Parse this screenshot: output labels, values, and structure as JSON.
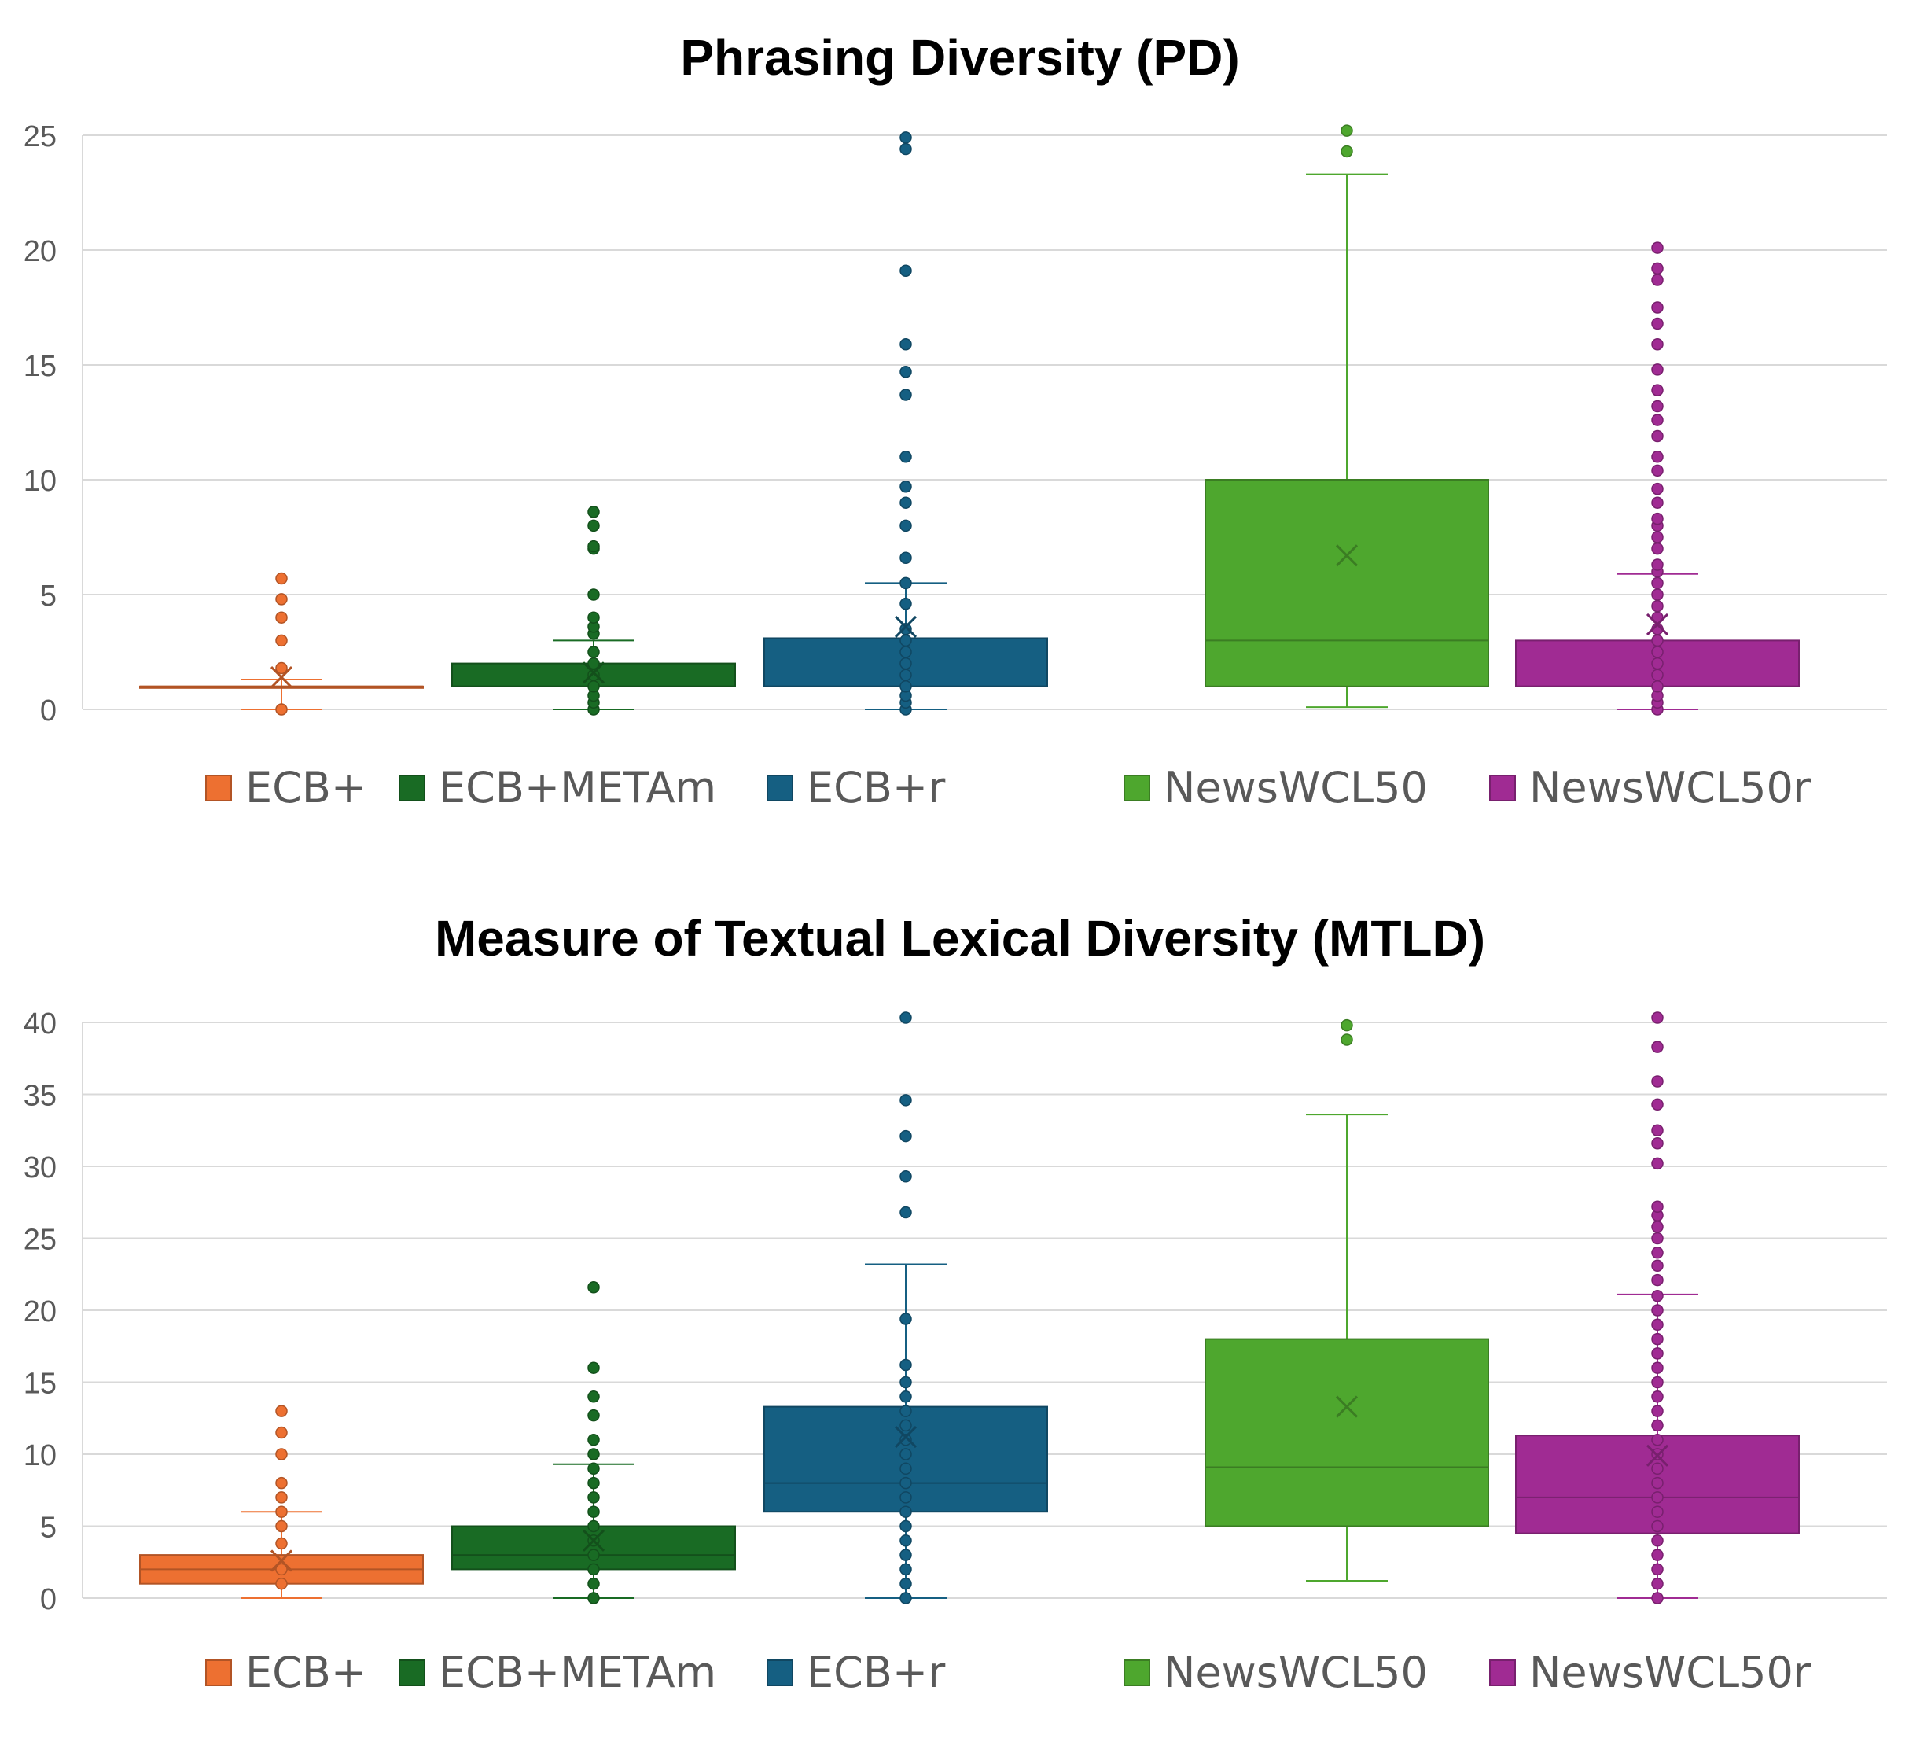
{
  "chart_data": [
    {
      "type": "box",
      "title": "Phrasing Diversity (PD)",
      "xlabel": "",
      "ylabel": "",
      "ylim": [
        0,
        25
      ],
      "yticks": [
        0,
        5,
        10,
        15,
        20,
        25
      ],
      "grid": true,
      "legend_position": "bottom",
      "series": [
        {
          "name": "ECB+",
          "color": "#ED7031",
          "min": 0,
          "q1": 1,
          "median": 1,
          "q3": 1,
          "max": 1.3,
          "mean": 1.4,
          "outliers": [
            0,
            1.8,
            3,
            4,
            4.8,
            5.7
          ]
        },
        {
          "name": "ECB+METAm",
          "color": "#196B24",
          "min": 0,
          "q1": 1,
          "median": 1,
          "q3": 2,
          "max": 3,
          "mean": 1.6,
          "outliers": [
            0,
            0.3,
            0.6,
            1,
            1.5,
            2,
            2.5,
            3.3,
            3.6,
            4,
            5,
            7,
            7.1,
            8,
            8.6
          ]
        },
        {
          "name": "ECB+r",
          "color": "#155F82",
          "min": 0,
          "q1": 1,
          "median": 1,
          "q3": 3.1,
          "max": 5.5,
          "mean": 3.6,
          "outliers": [
            0,
            0.3,
            0.6,
            1,
            1.5,
            2,
            2.5,
            3,
            3.5,
            4.6,
            5.5,
            6.6,
            8,
            9,
            9.7,
            11,
            13.7,
            14.7,
            15.9,
            19.1,
            24.4,
            24.9
          ]
        },
        {
          "name": "NewsWCL50",
          "color": "#4EA72E",
          "min": 0.1,
          "q1": 1,
          "median": 3,
          "q3": 10,
          "max": 23.3,
          "mean": 6.7,
          "outliers": [
            24.3,
            25.2
          ]
        },
        {
          "name": "NewsWCL50r",
          "color": "#A02B93",
          "min": 0,
          "q1": 1,
          "median": 1,
          "q3": 3,
          "max": 5.9,
          "mean": 3.7,
          "outliers": [
            0,
            0.3,
            0.6,
            1,
            1.5,
            2,
            2.5,
            3,
            3.5,
            4,
            4.5,
            5,
            5.5,
            6,
            6.3,
            7,
            7.5,
            8,
            8.3,
            9,
            9.6,
            10.4,
            11,
            11.9,
            12.6,
            13.2,
            13.9,
            14.8,
            15.9,
            16.8,
            17.5,
            18.7,
            19.2,
            20.1
          ]
        }
      ]
    },
    {
      "type": "box",
      "title": "Measure of Textual Lexical Diversity (MTLD)",
      "xlabel": "",
      "ylabel": "",
      "ylim": [
        0,
        40
      ],
      "yticks": [
        0,
        5,
        10,
        15,
        20,
        25,
        30,
        35,
        40
      ],
      "grid": true,
      "legend_position": "bottom",
      "series": [
        {
          "name": "ECB+",
          "color": "#ED7031",
          "min": 0,
          "q1": 1,
          "median": 2,
          "q3": 3,
          "max": 6,
          "mean": 2.6,
          "outliers": [
            1,
            2,
            3.8,
            5,
            6,
            7,
            8,
            10,
            11.5,
            13
          ]
        },
        {
          "name": "ECB+METAm",
          "color": "#196B24",
          "min": 0,
          "q1": 2,
          "median": 3,
          "q3": 5,
          "max": 9.3,
          "mean": 4,
          "outliers": [
            0,
            1,
            2,
            3,
            4,
            5,
            6,
            7,
            8,
            9,
            10,
            11,
            12.7,
            14,
            16,
            21.6
          ]
        },
        {
          "name": "ECB+r",
          "color": "#155F82",
          "min": 0,
          "q1": 6,
          "median": 8,
          "q3": 13.3,
          "max": 23.2,
          "mean": 11.2,
          "outliers": [
            0,
            1,
            2,
            3,
            4,
            5,
            6,
            7,
            8,
            9,
            10,
            11,
            12,
            13,
            14,
            15,
            16.2,
            19.4,
            26.8,
            29.3,
            32.1,
            34.6,
            40.5
          ]
        },
        {
          "name": "NewsWCL50",
          "color": "#4EA72E",
          "min": 1.2,
          "q1": 5,
          "median": 9.1,
          "q3": 18,
          "max": 33.6,
          "mean": 13.3,
          "outliers": [
            38.8,
            39.8
          ]
        },
        {
          "name": "NewsWCL50r",
          "color": "#A02B93",
          "min": 0,
          "q1": 4.5,
          "median": 7,
          "q3": 11.3,
          "max": 21.1,
          "mean": 9.9,
          "outliers": [
            0,
            1,
            2,
            3,
            4,
            5,
            6,
            7,
            8,
            9,
            10,
            11,
            12,
            13,
            14,
            15,
            16,
            17,
            18,
            19,
            20,
            21,
            22.1,
            23.1,
            24,
            25,
            25.8,
            26.6,
            27.2,
            30.2,
            31.6,
            32.5,
            34.3,
            35.9,
            38.3,
            40.4
          ]
        }
      ]
    }
  ]
}
